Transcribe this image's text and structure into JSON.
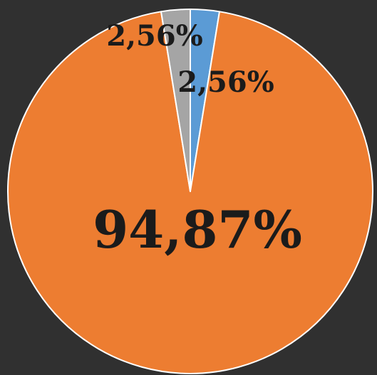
{
  "chart_data": {
    "type": "pie",
    "slices": [
      {
        "label": "2,56%",
        "value": 2.56,
        "color": "#5b9bd5"
      },
      {
        "label": "94,87%",
        "value": 94.87,
        "color": "#ed7d31"
      },
      {
        "label": "2,56%",
        "value": 2.56,
        "color": "#a5a5a5"
      }
    ],
    "slice_border_color": "#ffffff",
    "background_color": "#303030"
  }
}
